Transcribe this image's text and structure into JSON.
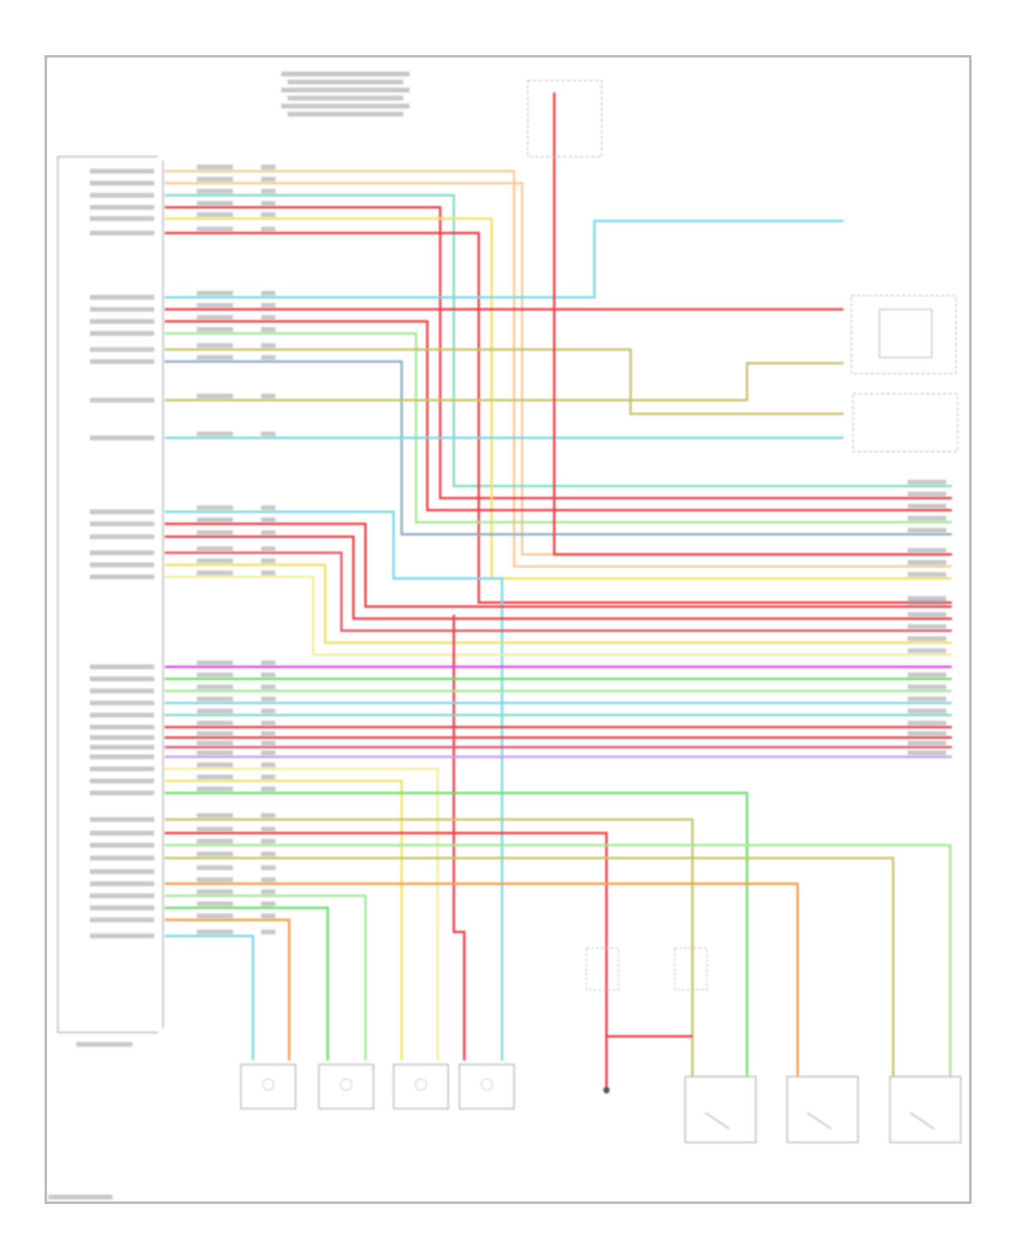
{
  "diagram": {
    "text_legible": false,
    "wire_colors": {
      "red": "#e9434b",
      "pink_red": "#e45a6a",
      "orange": "#f4a04a",
      "peach": "#f5cc9a",
      "yellow": "#f1e26a",
      "pale_yellow": "#f4eca0",
      "olive": "#c9c46e",
      "green": "#6ee06e",
      "light_green": "#a6e89a",
      "cyan": "#7fd8e6",
      "teal": "#86dcc4",
      "blue_gray": "#8fb0c8",
      "magenta": "#e04fe0",
      "purple": "#c8a0e6",
      "frame": "#b8b8b8",
      "component": "#c4c4c4",
      "label": "#9a9a9a"
    }
  }
}
